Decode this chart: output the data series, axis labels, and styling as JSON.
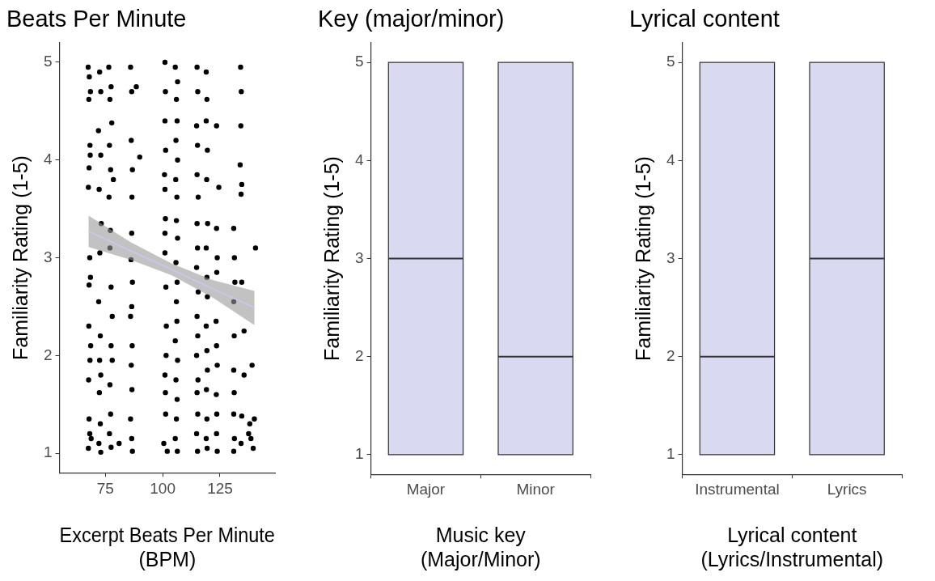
{
  "chart_data": [
    {
      "type": "scatter",
      "title": "Beats Per Minute",
      "xlabel": "Excerpt Beats Per Minute\n(BPM)",
      "ylabel": "Familiarity Rating (1-5)",
      "xlim": [
        55,
        149
      ],
      "xticks": [
        75,
        100,
        125
      ],
      "ylim": [
        0.8,
        5.2
      ],
      "yticks": [
        1,
        2,
        3,
        4,
        5
      ],
      "grid": false,
      "legend": false,
      "marker": "circle",
      "series": [
        {
          "type": "scatter",
          "color": "#000000",
          "x": [
            67.5,
            68.5,
            68,
            67.8,
            68.3,
            67.9,
            68.4,
            67.6,
            68.2,
            67.9,
            68.5,
            67.8,
            68.3,
            67.7,
            68.6,
            67.9,
            68.2,
            67.6,
            68.8,
            72.5,
            73,
            72,
            73,
            72.3,
            73.2,
            72.6,
            72.1,
            72.8,
            72.5,
            73,
            72.4,
            72.8,
            72.2,
            73,
            76.5,
            77.5,
            77,
            77.8,
            76.8,
            77.3,
            76.6,
            78.5,
            77.2,
            77,
            77.5,
            78,
            77.5,
            78,
            77,
            77.3,
            76.8,
            77.5,
            81,
            86,
            86.5,
            88.5,
            86.3,
            86.8,
            86.6,
            90,
            86.5,
            86.2,
            86.8,
            86.5,
            86,
            86.7,
            86.3,
            86.6,
            86,
            86.5,
            86.8,
            101,
            101.2,
            101,
            101.3,
            100.8,
            101,
            101.2,
            101,
            101,
            101.4,
            101.6,
            101.5,
            101,
            101.2,
            101.3,
            100.5,
            102,
            105.5,
            106.5,
            106,
            106.3,
            105.8,
            106.5,
            105.7,
            106.2,
            106,
            106.5,
            105.8,
            106.3,
            106,
            106.2,
            105.5,
            106.5,
            105.8,
            106.3,
            106,
            105.5,
            106.4,
            115,
            115.3,
            114.8,
            115.2,
            115,
            115.5,
            115,
            115.2,
            114.8,
            115.5,
            115,
            115.3,
            114.8,
            115.4,
            115,
            115.3,
            114.8,
            115.2,
            119,
            119.3,
            119,
            119.5,
            119.2,
            119.6,
            119,
            119.3,
            119.5,
            119,
            119.3,
            119.5,
            119.1,
            119.3,
            119,
            119.4,
            123.5,
            124.5,
            123.5,
            123.8,
            123.6,
            123.3,
            123.5,
            123.8,
            123.4,
            123.6,
            123.5,
            123.8,
            131,
            131.3,
            131.5,
            131,
            131.2,
            131,
            131.2,
            131,
            131.3,
            131,
            134,
            134.3,
            134.1,
            133.8,
            134.5,
            134.2,
            134.5,
            135.5,
            135.5,
            134.5,
            134.2,
            138,
            138.5,
            139.5,
            140,
            137.5,
            139,
            140.5
          ],
          "values": [
            4.95,
            4.7,
            4.85,
            4.62,
            4.15,
            3.92,
            4.05,
            3.72,
            3.0,
            2.72,
            2.8,
            2.3,
            1.95,
            1.75,
            2.1,
            1.35,
            1.2,
            1.05,
            1.15,
            4.9,
            4.7,
            4.3,
            4.05,
            3.7,
            3.35,
            3.05,
            2.55,
            2.2,
            1.95,
            1.8,
            1.62,
            1.3,
            1.1,
            1.01,
            4.95,
            4.75,
            4.62,
            4.38,
            4.15,
            3.9,
            3.62,
            3.8,
            3.28,
            3.1,
            2.7,
            2.4,
            2.1,
            1.95,
            1.7,
            1.4,
            1.2,
            1.06,
            1.1,
            4.95,
            4.7,
            4.75,
            4.2,
            3.9,
            3.62,
            4.03,
            3.25,
            2.98,
            2.75,
            2.5,
            2.4,
            2.1,
            1.9,
            1.65,
            1.35,
            1.15,
            1.02,
            5.0,
            4.7,
            4.4,
            4.1,
            3.85,
            3.7,
            3.4,
            3.25,
            3.05,
            2.7,
            2.3,
            2.0,
            1.8,
            1.62,
            1.4,
            1.1,
            1.02,
            4.95,
            4.8,
            4.62,
            4.4,
            4.2,
            4.0,
            3.8,
            3.62,
            3.38,
            3.2,
            2.95,
            2.75,
            2.55,
            2.35,
            2.15,
            1.95,
            1.75,
            1.55,
            1.35,
            1.15,
            1.02,
            4.95,
            4.7,
            4.35,
            4.15,
            3.85,
            3.62,
            3.35,
            3.1,
            2.9,
            2.65,
            2.4,
            2.2,
            2.0,
            1.75,
            1.62,
            1.4,
            1.2,
            1.02,
            4.9,
            4.62,
            4.4,
            4.1,
            3.8,
            3.35,
            3.1,
            2.8,
            2.6,
            2.3,
            2.05,
            1.85,
            1.65,
            1.35,
            1.15,
            1.05,
            4.35,
            3.72,
            3.3,
            3.0,
            2.85,
            2.35,
            2.1,
            1.9,
            1.6,
            1.4,
            1.2,
            1.02,
            3.3,
            3.0,
            2.75,
            2.55,
            2.2,
            1.85,
            1.62,
            1.4,
            1.15,
            1.02,
            4.95,
            4.7,
            4.35,
            3.95,
            3.75,
            3.65,
            2.75,
            2.25,
            1.8,
            1.38,
            1.1,
            1.3,
            1.15,
            1.05,
            1.35,
            1.2,
            1.9,
            3.1
          ]
        },
        {
          "type": "line",
          "color": "#c8c8f0",
          "marker": "none",
          "x": [
            67.7,
            86,
            104,
            122,
            140
          ],
          "values": [
            3.27,
            3.07,
            2.88,
            2.68,
            2.49
          ],
          "lower": [
            3.11,
            2.98,
            2.82,
            2.59,
            2.31
          ],
          "upper": [
            3.43,
            3.16,
            2.94,
            2.77,
            2.66
          ]
        }
      ]
    },
    {
      "type": "box",
      "title": "Key (major/minor)",
      "xlabel": "Music key\n(Major/Minor)",
      "ylabel": "Familiarity Rating (1-5)",
      "categories": [
        "Major",
        "Minor"
      ],
      "color": "#d9d9f2",
      "ylim": [
        0.8,
        5.2
      ],
      "yticks": [
        1,
        2,
        3,
        4,
        5
      ],
      "grid": false,
      "legend": false,
      "boxes": [
        {
          "low": 1,
          "q1": 1,
          "median": 3,
          "q3": 5,
          "high": 5
        },
        {
          "low": 1,
          "q1": 1,
          "median": 2,
          "q3": 5,
          "high": 5
        }
      ]
    },
    {
      "type": "box",
      "title": "Lyrical content",
      "xlabel": "Lyrical content\n(Lyrics/Instrumental)",
      "ylabel": "Familiarity Rating (1-5)",
      "categories": [
        "Instrumental",
        "Lyrics"
      ],
      "color": "#d9d9f2",
      "ylim": [
        0.8,
        5.2
      ],
      "yticks": [
        1,
        2,
        3,
        4,
        5
      ],
      "grid": false,
      "legend": false,
      "boxes": [
        {
          "low": 1,
          "q1": 1,
          "median": 2,
          "q3": 5,
          "high": 5
        },
        {
          "low": 1,
          "q1": 1,
          "median": 3,
          "q3": 5,
          "high": 5
        }
      ]
    }
  ]
}
